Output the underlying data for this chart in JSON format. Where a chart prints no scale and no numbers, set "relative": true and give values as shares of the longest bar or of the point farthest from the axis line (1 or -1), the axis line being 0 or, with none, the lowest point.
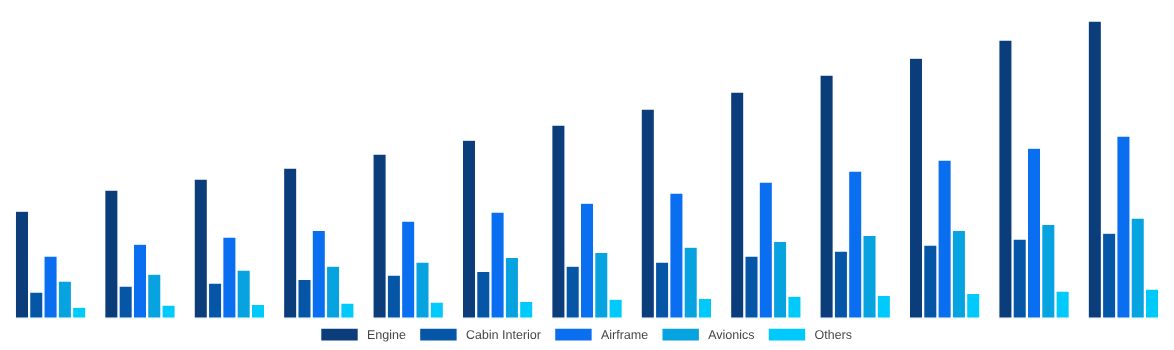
{
  "chart_data": {
    "type": "bar",
    "relative": true,
    "legend": "bottom",
    "categories": [
      null,
      null,
      null,
      null,
      null,
      null,
      null,
      null,
      null,
      null,
      null,
      null,
      null
    ],
    "series": [
      {
        "name": "Engine",
        "color": "#0b3d7b",
        "values": [
          0.36,
          0.431,
          0.468,
          0.505,
          0.552,
          0.599,
          0.65,
          0.704,
          0.761,
          0.818,
          0.875,
          0.936,
          1.0
        ]
      },
      {
        "name": "Cabin Interior",
        "color": "#0656a8",
        "values": [
          0.088,
          0.108,
          0.118,
          0.131,
          0.145,
          0.158,
          0.175,
          0.189,
          0.209,
          0.226,
          0.246,
          0.266,
          0.286
        ]
      },
      {
        "name": "Airframe",
        "color": "#0a6ef0",
        "values": [
          0.209,
          0.249,
          0.273,
          0.296,
          0.327,
          0.357,
          0.387,
          0.421,
          0.458,
          0.495,
          0.532,
          0.572,
          0.613
        ]
      },
      {
        "name": "Avionics",
        "color": "#07a2e0",
        "values": [
          0.125,
          0.148,
          0.162,
          0.175,
          0.189,
          0.205,
          0.222,
          0.239,
          0.259,
          0.279,
          0.296,
          0.316,
          0.337
        ]
      },
      {
        "name": "Others",
        "color": "#00c9fb",
        "values": [
          0.037,
          0.044,
          0.047,
          0.051,
          0.054,
          0.057,
          0.064,
          0.067,
          0.074,
          0.077,
          0.084,
          0.091,
          0.098
        ]
      }
    ]
  }
}
